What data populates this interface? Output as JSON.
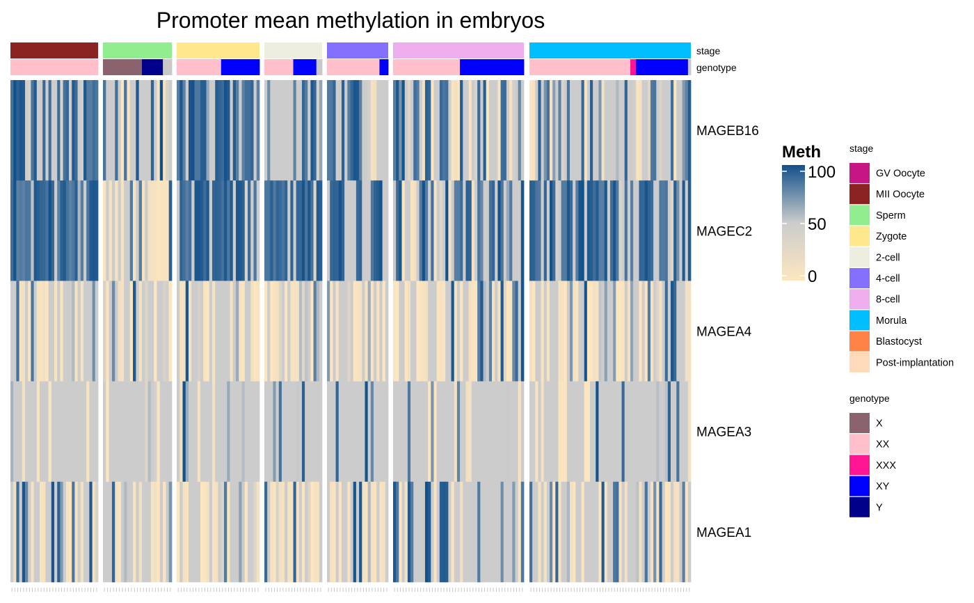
{
  "chart_data": {
    "type": "heatmap",
    "title": "Promoter mean methylation in embryos",
    "rows": [
      "MAGEB16",
      "MAGEC2",
      "MAGEA4",
      "MAGEA3",
      "MAGEA1"
    ],
    "annotation_tracks": [
      "stage",
      "genotype"
    ],
    "column_groups": [
      {
        "stage": "MII Oocyte",
        "n_samples": 30,
        "genotype_runs": [
          {
            "genotype": "XX",
            "count": 30
          }
        ]
      },
      {
        "stage": "Sperm",
        "n_samples": 23,
        "genotype_runs": [
          {
            "genotype": "X",
            "count": 13
          },
          {
            "genotype": "Y",
            "count": 7
          },
          {
            "genotype": "NA",
            "count": 3
          }
        ]
      },
      {
        "stage": "Zygote",
        "n_samples": 28,
        "genotype_runs": [
          {
            "genotype": "XX",
            "count": 15
          },
          {
            "genotype": "XY",
            "count": 13
          }
        ]
      },
      {
        "stage": "2-cell",
        "n_samples": 20,
        "genotype_runs": [
          {
            "genotype": "XX",
            "count": 10
          },
          {
            "genotype": "XY",
            "count": 8
          },
          {
            "genotype": "NA",
            "count": 2
          }
        ]
      },
      {
        "stage": "4-cell",
        "n_samples": 21,
        "genotype_runs": [
          {
            "genotype": "XX",
            "count": 18
          },
          {
            "genotype": "XY",
            "count": 3
          }
        ]
      },
      {
        "stage": "8-cell",
        "n_samples": 45,
        "genotype_runs": [
          {
            "genotype": "XX",
            "count": 23
          },
          {
            "genotype": "XY",
            "count": 22
          }
        ]
      },
      {
        "stage": "Morula",
        "n_samples": 56,
        "genotype_runs": [
          {
            "genotype": "XX",
            "count": 35
          },
          {
            "genotype": "XXX",
            "count": 2
          },
          {
            "genotype": "XY",
            "count": 18
          },
          {
            "genotype": "NA",
            "count": 1
          }
        ]
      }
    ],
    "color_scale": {
      "title": "Meth",
      "ticks": [
        0,
        50,
        100
      ],
      "range": [
        0,
        100
      ],
      "low": "#FDE6BF",
      "mid": "#CCCCCC",
      "high": "#12508A",
      "na": "#CCCCCC"
    },
    "row_patterns": {
      "MAGEB16": [
        0.72,
        0.18,
        0.6,
        0.35,
        0.4,
        0.3,
        0.3
      ],
      "MAGEC2": [
        0.75,
        0.1,
        0.7,
        0.6,
        0.45,
        0.35,
        0.6
      ],
      "MAGEA4": [
        0.06,
        0.05,
        0.04,
        0.03,
        0.03,
        0.05,
        0.04
      ],
      "MAGEA3": [
        0.0,
        0.0,
        0.02,
        0.05,
        0.1,
        0.02,
        0.06
      ],
      "MAGEA1": [
        0.2,
        0.12,
        0.18,
        0.1,
        0.05,
        0.25,
        0.2
      ]
    },
    "legends": {
      "stage": {
        "title": "stage",
        "items": [
          {
            "label": "GV Oocyte",
            "color": "#C71585"
          },
          {
            "label": "MII Oocyte",
            "color": "#8B2323"
          },
          {
            "label": "Sperm",
            "color": "#90EE90"
          },
          {
            "label": "Zygote",
            "color": "#FFE88C"
          },
          {
            "label": "2-cell",
            "color": "#EEEEE0"
          },
          {
            "label": "4-cell",
            "color": "#8470FF"
          },
          {
            "label": "8-cell",
            "color": "#EEAEEE"
          },
          {
            "label": "Morula",
            "color": "#00BFFF"
          },
          {
            "label": "Blastocyst",
            "color": "#FF8247"
          },
          {
            "label": "Post-implantation",
            "color": "#FFDAB9"
          }
        ]
      },
      "genotype": {
        "title": "genotype",
        "items": [
          {
            "label": "X",
            "color": "#8B636C"
          },
          {
            "label": "XX",
            "color": "#FFC0CB"
          },
          {
            "label": "XXX",
            "color": "#FF1493"
          },
          {
            "label": "XY",
            "color": "#0000FF"
          },
          {
            "label": "Y",
            "color": "#00008B"
          }
        ]
      }
    }
  }
}
